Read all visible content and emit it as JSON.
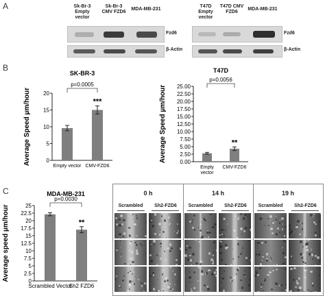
{
  "panelA": {
    "letter": "A",
    "left_lanes": [
      "Sk-Br-3 Empty vector",
      "Sk-Br-3 CMV FZD6",
      "MDA-MB-231"
    ],
    "right_lanes": [
      "T47D Empty vector",
      "T47D CMV FZD6",
      "MDA-MB-231"
    ],
    "labels": {
      "fzd6": "Fzd6",
      "actin": "β-Actin"
    }
  },
  "panelB": {
    "letter": "B"
  },
  "panelC": {
    "letter": "C"
  },
  "chart_data": [
    {
      "type": "bar",
      "title": "SK-BR-3",
      "ylabel": "Average Speed µm/hour",
      "categories": [
        "Empty vector",
        "CMV-FZD6"
      ],
      "values": [
        9.6,
        15.0
      ],
      "errors": [
        0.8,
        1.2
      ],
      "ylim": [
        0,
        20
      ],
      "yticks": [
        "0",
        "5",
        "10",
        "15",
        "20"
      ],
      "pvalue": "p=0.0005",
      "significance": [
        "",
        "***"
      ]
    },
    {
      "type": "bar",
      "title": "T47D",
      "ylabel": "Average Speed µm/hour",
      "categories": [
        "Empty vector",
        "CMV-FZD6"
      ],
      "values": [
        2.8,
        4.3
      ],
      "errors": [
        0.3,
        0.6
      ],
      "ylim": [
        0,
        25
      ],
      "yticks": [
        "0.00",
        "2.50",
        "5.00",
        "7.50",
        "10.00",
        "12.50",
        "15.00",
        "17.50",
        "20.00",
        "22.50",
        "25.00"
      ],
      "pvalue": "p=0.0056",
      "significance": [
        "",
        "**"
      ]
    },
    {
      "type": "bar",
      "title": "MDA-MB-231",
      "ylabel": "Average speed µm/hour",
      "categories": [
        "Scrambled Vector",
        "Sh2 FZD6"
      ],
      "values": [
        22.1,
        17.0
      ],
      "errors": [
        0.5,
        1.0
      ],
      "ylim": [
        0,
        25
      ],
      "yticks": [
        "0",
        "2.5",
        "5",
        "7.5",
        "10",
        "12.5",
        "15",
        "17.5",
        "20",
        "22.5",
        "25"
      ],
      "pvalue": "p=0.0030",
      "significance": [
        "",
        "**"
      ]
    }
  ],
  "micrographs": {
    "timepoints": [
      "0 h",
      "14 h",
      "19 h"
    ],
    "conditions": [
      "Scrambled",
      "Sh2-FZD6"
    ]
  }
}
